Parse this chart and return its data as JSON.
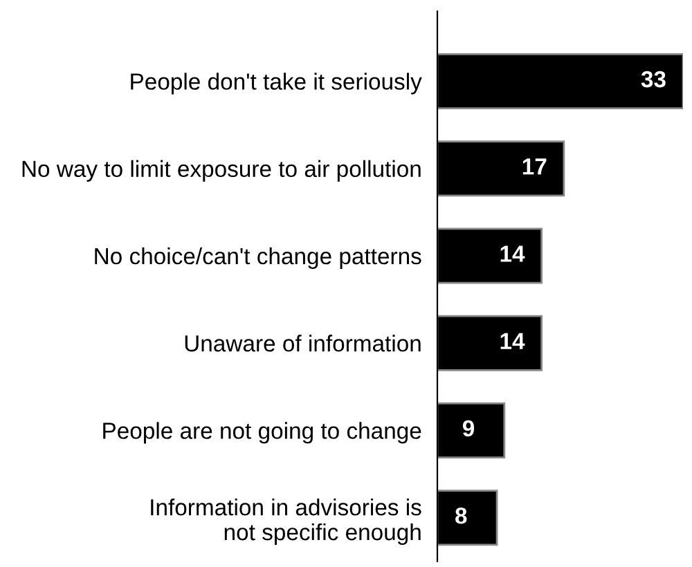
{
  "chart_data": {
    "type": "bar",
    "orientation": "horizontal",
    "categories": [
      "People don't take it seriously",
      "No way to limit exposure to air pollution",
      "No choice/can't change patterns",
      "Unaware of information",
      "People are not going to change",
      "Information in advisories is\nnot specific enough"
    ],
    "values": [
      33,
      17,
      14,
      14,
      9,
      8
    ],
    "color": "#000000",
    "data_labels": true,
    "grid": false,
    "legend": false
  }
}
